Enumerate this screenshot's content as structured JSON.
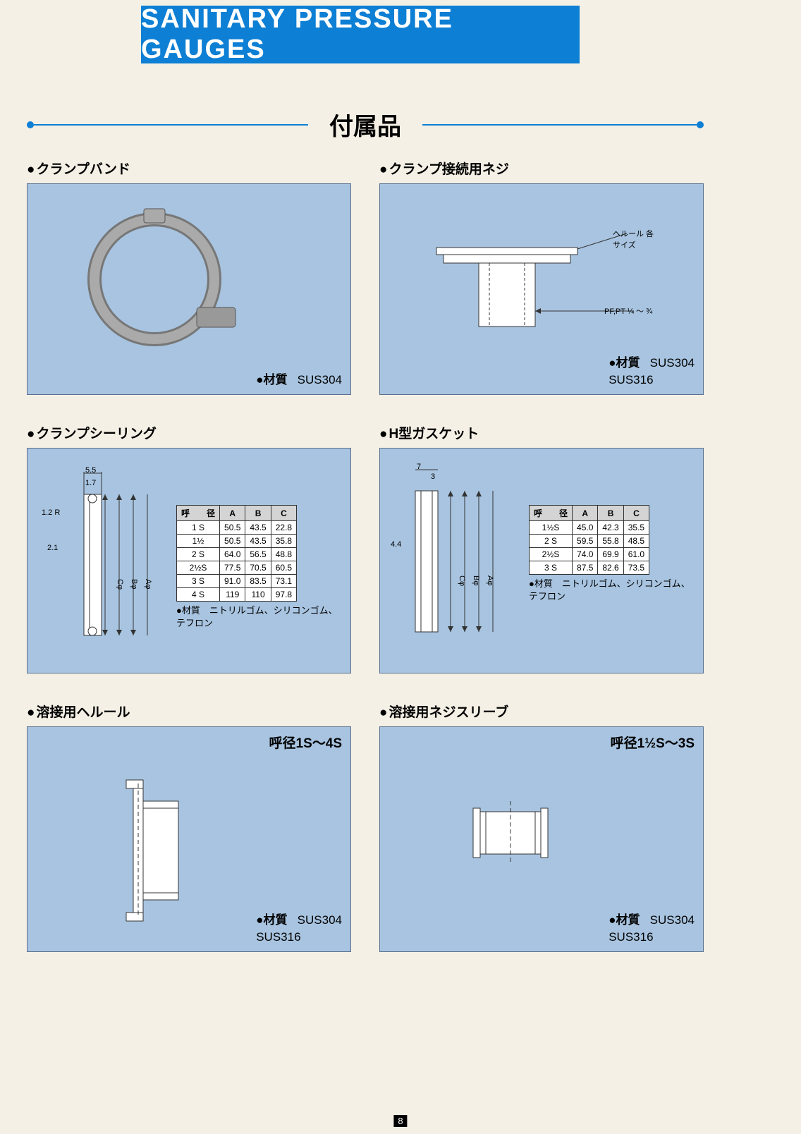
{
  "header": {
    "title": "SANITARY PRESSURE GAUGES"
  },
  "subtitle": "付属品",
  "colors": {
    "accent": "#0d7fd4",
    "panel_bg": "#a8c4e0",
    "panel_border": "#5a7090",
    "page_bg": "#f5f0e5",
    "table_header_bg": "#d4d4d4"
  },
  "cards": {
    "clamp_band": {
      "title": "クランプバンド",
      "material_label": "材質",
      "materials": "SUS304"
    },
    "clamp_screw": {
      "title": "クランプ接続用ネジ",
      "material_label": "材質",
      "materials": "SUS304\nSUS316",
      "annot_top": "ヘルール 各サイズ",
      "annot_side": "PF,PT ¼ ～ ¾"
    },
    "clamp_seal": {
      "title": "クランプシーリング",
      "dims": {
        "d1": "5.5",
        "d2": "1.7",
        "d3": "1.2 R",
        "d4": "2.1",
        "c": "Cφ",
        "b": "Bφ",
        "a": "Aφ"
      },
      "table": {
        "headers": [
          "呼　　径",
          "A",
          "B",
          "C"
        ],
        "rows": [
          [
            "1 S",
            "50.5",
            "43.5",
            "22.8"
          ],
          [
            "1½",
            "50.5",
            "43.5",
            "35.8"
          ],
          [
            "2 S",
            "64.0",
            "56.5",
            "48.8"
          ],
          [
            "2½S",
            "77.5",
            "70.5",
            "60.5"
          ],
          [
            "3 S",
            "91.0",
            "83.5",
            "73.1"
          ],
          [
            "4 S",
            "119",
            "110",
            "97.8"
          ]
        ]
      },
      "note": "材質　ニトリルゴム、シリコンゴム、テフロン"
    },
    "h_gasket": {
      "title": "H型ガスケット",
      "dims": {
        "d1": "7",
        "d2": "3",
        "d3": "4.4",
        "c": "Cφ",
        "b": "Bφ",
        "a": "Aφ"
      },
      "table": {
        "headers": [
          "呼　　径",
          "A",
          "B",
          "C"
        ],
        "rows": [
          [
            "1½S",
            "45.0",
            "42.3",
            "35.5"
          ],
          [
            "2 S",
            "59.5",
            "55.8",
            "48.5"
          ],
          [
            "2½S",
            "74.0",
            "69.9",
            "61.0"
          ],
          [
            "3 S",
            "87.5",
            "82.6",
            "73.5"
          ]
        ]
      },
      "note": "材質　ニトリルゴム、シリコンゴム、テフロン"
    },
    "weld_ferrule": {
      "title": "溶接用ヘルール",
      "size_range": "呼径1S～4S",
      "material_label": "材質",
      "materials": "SUS304\nSUS316"
    },
    "weld_sleeve": {
      "title": "溶接用ネジスリーブ",
      "size_range": "呼径1½S～3S",
      "material_label": "材質",
      "materials": "SUS304\nSUS316"
    }
  },
  "page_number": "8"
}
